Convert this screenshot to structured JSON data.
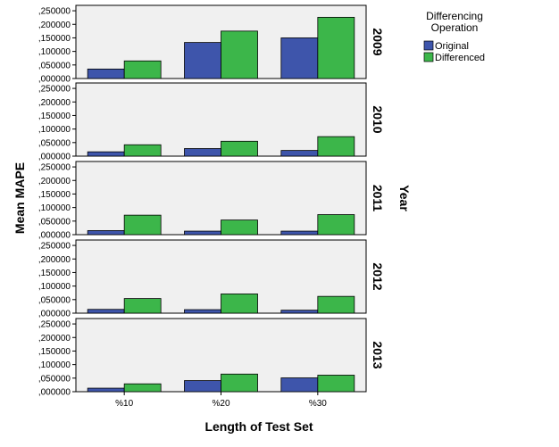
{
  "chart_data": {
    "type": "bar",
    "ylabel": "Mean MAPE",
    "xlabel": "Length of Test Set",
    "facet_label": "Year",
    "categories": [
      "%10",
      "%20",
      "%30"
    ],
    "yticks": [
      ",000000",
      ",050000",
      ",100000",
      ",150000",
      ",200000",
      ",250000"
    ],
    "ylim": [
      0,
      0.27
    ],
    "legend": {
      "title_line1": "Differencing",
      "title_line2": "Operation",
      "placement": "top-right",
      "items": [
        {
          "name": "Original",
          "color": "#3e55ab"
        },
        {
          "name": "Differenced",
          "color": "#3cb64a"
        }
      ]
    },
    "panels": [
      {
        "facet": "2009",
        "series": [
          {
            "name": "Original",
            "values": [
              0.035,
              0.133,
              0.15
            ]
          },
          {
            "name": "Differenced",
            "values": [
              0.065,
              0.175,
              0.226
            ]
          }
        ]
      },
      {
        "facet": "2010",
        "series": [
          {
            "name": "Original",
            "values": [
              0.016,
              0.028,
              0.021
            ]
          },
          {
            "name": "Differenced",
            "values": [
              0.042,
              0.055,
              0.072
            ]
          }
        ]
      },
      {
        "facet": "2011",
        "series": [
          {
            "name": "Original",
            "values": [
              0.015,
              0.013,
              0.013
            ]
          },
          {
            "name": "Differenced",
            "values": [
              0.072,
              0.054,
              0.074
            ]
          }
        ]
      },
      {
        "facet": "2012",
        "series": [
          {
            "name": "Original",
            "values": [
              0.014,
              0.013,
              0.011
            ]
          },
          {
            "name": "Differenced",
            "values": [
              0.054,
              0.071,
              0.062
            ]
          }
        ]
      },
      {
        "facet": "2013",
        "series": [
          {
            "name": "Original",
            "values": [
              0.013,
              0.041,
              0.051
            ]
          },
          {
            "name": "Differenced",
            "values": [
              0.029,
              0.065,
              0.061
            ]
          }
        ]
      }
    ],
    "grid": false,
    "plot_background": "#f0f0f0"
  }
}
